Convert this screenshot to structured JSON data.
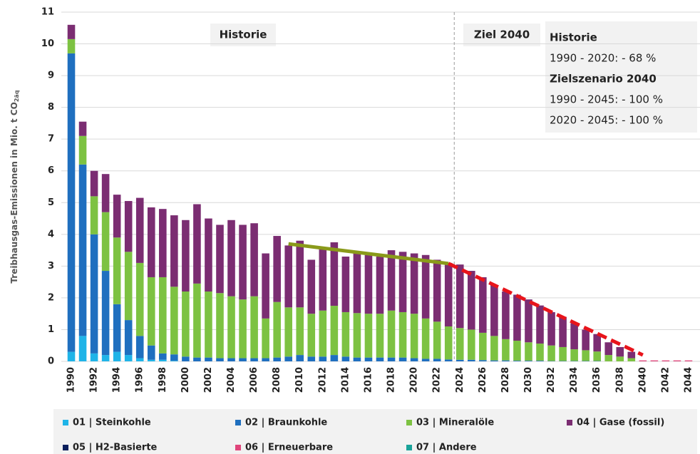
{
  "chart_data": {
    "type": "stacked_bar",
    "ylabel": "Treibhausgas-Emissionen in Mio. t CO",
    "ylabel_sub": "2äq",
    "categories": [
      "1990",
      null,
      "1992",
      null,
      "1994",
      null,
      "1996",
      null,
      "1998",
      null,
      "2000",
      null,
      "2002",
      null,
      "2004",
      null,
      "2006",
      null,
      "2008",
      null,
      "2010",
      null,
      "2012",
      null,
      "2014",
      null,
      "2016",
      null,
      "2018",
      null,
      "2020",
      null,
      "2022",
      null,
      "2024",
      null,
      "2026",
      null,
      "2028",
      null,
      "2030",
      null,
      "2032",
      null,
      "2034",
      null,
      "2036",
      null,
      "2038",
      null,
      "2040",
      null,
      "2042",
      null,
      "2044"
    ],
    "series": [
      {
        "name": "01 | Steinkohle",
        "color": "#1fb4e8",
        "values": [
          0.3,
          0.8,
          0.25,
          0.2,
          0.3,
          0.2,
          0.1,
          0.05,
          0.05,
          0.02,
          0,
          0,
          0,
          0,
          0,
          0,
          0,
          0,
          0,
          0,
          0,
          0,
          0,
          0,
          0,
          0,
          0,
          0,
          0,
          0,
          0,
          0,
          0,
          0,
          0,
          0,
          0,
          0,
          0,
          0,
          0,
          0,
          0,
          0,
          0,
          0,
          0,
          0,
          0,
          0,
          0,
          0,
          0,
          0,
          0
        ]
      },
      {
        "name": "02 | Braunkohle",
        "color": "#1f6fbf",
        "values": [
          9.4,
          5.4,
          3.75,
          2.65,
          1.5,
          1.1,
          0.7,
          0.45,
          0.2,
          0.2,
          0.15,
          0.12,
          0.12,
          0.1,
          0.1,
          0.1,
          0.1,
          0.1,
          0.12,
          0.15,
          0.2,
          0.15,
          0.15,
          0.2,
          0.15,
          0.12,
          0.12,
          0.12,
          0.12,
          0.12,
          0.1,
          0.08,
          0.08,
          0.06,
          0.05,
          0.05,
          0.04,
          0.03,
          0.03,
          0.02,
          0.02,
          0.02,
          0.01,
          0.01,
          0.01,
          0.01,
          0.01,
          0,
          0,
          0,
          0,
          0,
          0,
          0,
          0
        ]
      },
      {
        "name": "03 | Mineralöle",
        "color": "#7dc242",
        "values": [
          0.45,
          0.9,
          1.2,
          1.85,
          2.1,
          2.15,
          2.3,
          2.15,
          2.4,
          2.13,
          2.05,
          2.33,
          2.08,
          2.05,
          1.95,
          1.85,
          1.95,
          1.25,
          1.75,
          1.55,
          1.5,
          1.35,
          1.45,
          1.55,
          1.4,
          1.4,
          1.38,
          1.38,
          1.48,
          1.43,
          1.4,
          1.27,
          1.17,
          1.04,
          1.0,
          0.95,
          0.86,
          0.77,
          0.67,
          0.63,
          0.58,
          0.54,
          0.49,
          0.44,
          0.37,
          0.34,
          0.3,
          0.2,
          0.15,
          0.1,
          0,
          0,
          0,
          0,
          0
        ]
      },
      {
        "name": "04 | Gase (fossil)",
        "color": "#7b2d72",
        "values": [
          0.45,
          0.45,
          0.8,
          1.2,
          1.35,
          1.6,
          2.05,
          2.2,
          2.15,
          2.25,
          2.25,
          2.5,
          2.3,
          2.15,
          2.4,
          2.35,
          2.3,
          2.05,
          2.08,
          1.95,
          2.1,
          1.7,
          2.0,
          2.0,
          1.75,
          1.93,
          1.85,
          1.8,
          1.9,
          1.9,
          1.9,
          2.0,
          1.95,
          2.0,
          2.0,
          1.85,
          1.75,
          1.6,
          1.5,
          1.45,
          1.35,
          1.2,
          1.05,
          0.95,
          0.82,
          0.65,
          0.55,
          0.4,
          0.3,
          0.2,
          0,
          0,
          0,
          0,
          0
        ]
      },
      {
        "name": "05 | H2-Basierte",
        "color": "#0b1f5c",
        "values": [
          0,
          0,
          0,
          0,
          0,
          0,
          0,
          0,
          0,
          0,
          0,
          0,
          0,
          0,
          0,
          0,
          0,
          0,
          0,
          0,
          0,
          0,
          0,
          0,
          0,
          0,
          0,
          0,
          0,
          0,
          0,
          0,
          0,
          0,
          0,
          0,
          0,
          0,
          0,
          0,
          0,
          0,
          0,
          0,
          0,
          0,
          0,
          0,
          0,
          0,
          0,
          0,
          0,
          0,
          0
        ]
      },
      {
        "name": "06 | Erneuerbare",
        "color": "#e0457b",
        "values": [
          0,
          0,
          0,
          0,
          0,
          0,
          0,
          0,
          0,
          0,
          0,
          0,
          0,
          0,
          0,
          0,
          0,
          0,
          0,
          0,
          0,
          0,
          0,
          0,
          0,
          0,
          0,
          0,
          0,
          0,
          0,
          0,
          0,
          0,
          0,
          0,
          0,
          0,
          0,
          0,
          0,
          0,
          0,
          0,
          0,
          0,
          0,
          0,
          0,
          0,
          0.03,
          0.03,
          0.03,
          0.03,
          0.03
        ]
      },
      {
        "name": "07 | Andere",
        "color": "#1aa39a",
        "values": [
          0,
          0,
          0,
          0,
          0,
          0,
          0,
          0,
          0,
          0,
          0,
          0,
          0,
          0,
          0,
          0,
          0,
          0,
          0,
          0,
          0,
          0,
          0,
          0,
          0,
          0,
          0,
          0,
          0,
          0,
          0,
          0,
          0,
          0,
          0,
          0,
          0,
          0,
          0,
          0,
          0,
          0,
          0,
          0,
          0,
          0,
          0,
          0,
          0,
          0,
          0,
          0,
          0,
          0,
          0
        ]
      }
    ],
    "ylim": [
      0,
      11
    ],
    "yticks": [
      0,
      1,
      2,
      3,
      4,
      5,
      6,
      7,
      8,
      9,
      10,
      11
    ],
    "grid": true,
    "trend_lines": [
      {
        "color": "#8a9a1a",
        "x": [
          2009,
          2023
        ],
        "y": [
          3.7,
          3.08
        ]
      },
      {
        "color": "#e8141b",
        "dashed": true,
        "x": [
          2023,
          2040
        ],
        "y": [
          3.08,
          0.2
        ]
      }
    ],
    "annotations": {
      "history": "Historie",
      "target": "Ziel 2040",
      "box": [
        "Historie",
        "1990 - 2020: - 68 %",
        "Zielszenario 2040",
        "1990 - 2045: - 100 %",
        "2020 - 2045: - 100 %"
      ]
    }
  }
}
